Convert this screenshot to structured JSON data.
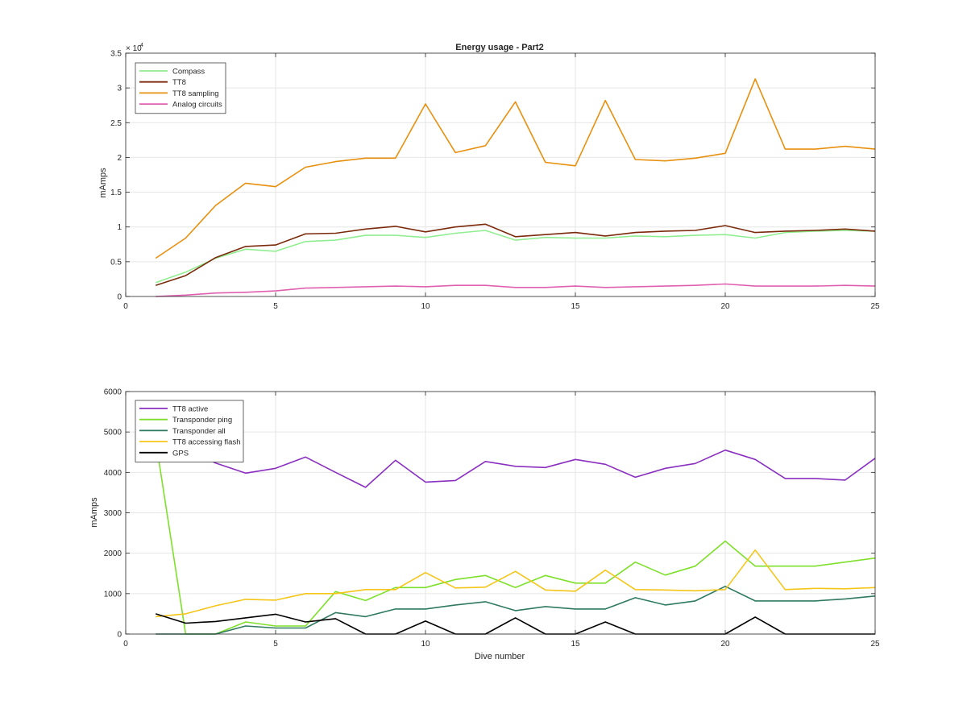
{
  "chart_data": [
    {
      "type": "line",
      "title": "Energy usage - Part2",
      "xlabel": "",
      "ylabel": "mAmps",
      "exponent_label": "× 10",
      "exponent_power": "4",
      "xlim": [
        0,
        25
      ],
      "ylim": [
        0,
        35000
      ],
      "xticks": [
        0,
        5,
        10,
        15,
        20,
        25
      ],
      "yticks": [
        0,
        5000,
        10000,
        15000,
        20000,
        25000,
        30000,
        35000
      ],
      "ytick_labels": [
        "0",
        "0.5",
        "1",
        "1.5",
        "2",
        "2.5",
        "3",
        "3.5"
      ],
      "grid": true,
      "legend_position": "top-left",
      "x": [
        1,
        2,
        3,
        4,
        5,
        6,
        7,
        8,
        9,
        10,
        11,
        12,
        13,
        14,
        15,
        16,
        17,
        18,
        19,
        20,
        21,
        22,
        23,
        24,
        25
      ],
      "series": [
        {
          "name": "Compass",
          "color": "#90ee90",
          "values": [
            2000,
            3500,
            5500,
            6800,
            6500,
            7900,
            8100,
            8800,
            8800,
            8500,
            9100,
            9500,
            8100,
            8500,
            8400,
            8400,
            8700,
            8600,
            8800,
            8900,
            8400,
            9200,
            9400,
            9500,
            9400
          ]
        },
        {
          "name": "TT8",
          "color": "#7b2a0c",
          "values": [
            1600,
            3000,
            5600,
            7200,
            7400,
            9000,
            9100,
            9700,
            10100,
            9300,
            10000,
            10400,
            8600,
            8900,
            9200,
            8700,
            9200,
            9400,
            9500,
            10200,
            9200,
            9400,
            9500,
            9700,
            9400
          ]
        },
        {
          "name": "TT8 sampling",
          "color": "#e8900e",
          "values": [
            5500,
            8400,
            13100,
            16300,
            15800,
            18600,
            19400,
            19900,
            19900,
            27700,
            20700,
            21700,
            28000,
            19300,
            18800,
            28200,
            19700,
            19500,
            19900,
            20600,
            31300,
            21200,
            21200,
            21600,
            21200
          ]
        },
        {
          "name": "Analog circuits",
          "color": "#e060b0",
          "values": [
            0,
            200,
            500,
            600,
            800,
            1200,
            1300,
            1400,
            1500,
            1400,
            1600,
            1600,
            1300,
            1300,
            1500,
            1300,
            1400,
            1500,
            1600,
            1800,
            1500,
            1500,
            1500,
            1600,
            1500
          ]
        }
      ]
    },
    {
      "type": "line",
      "title": "",
      "xlabel": "Dive number",
      "ylabel": "mAmps",
      "xlim": [
        0,
        25
      ],
      "ylim": [
        0,
        6000
      ],
      "xticks": [
        0,
        5,
        10,
        15,
        20,
        25
      ],
      "yticks": [
        0,
        1000,
        2000,
        3000,
        4000,
        5000,
        6000
      ],
      "ytick_labels": [
        "0",
        "1000",
        "2000",
        "3000",
        "4000",
        "5000",
        "6000"
      ],
      "grid": true,
      "legend_position": "top-left",
      "x": [
        1,
        2,
        3,
        4,
        5,
        6,
        7,
        8,
        9,
        10,
        11,
        12,
        13,
        14,
        15,
        16,
        17,
        18,
        19,
        20,
        21,
        22,
        23,
        24,
        25
      ],
      "series": [
        {
          "name": "TT8 active",
          "color": "#8a2fc0",
          "values": [
            4700,
            4600,
            4230,
            3980,
            4100,
            4380,
            4000,
            3630,
            4300,
            3760,
            3800,
            4270,
            4150,
            4120,
            4320,
            4200,
            3880,
            4100,
            4220,
            4550,
            4320,
            3850,
            3850,
            3810,
            4350
          ]
        },
        {
          "name": "Transponder ping",
          "color": "#7ee02a",
          "values": [
            4800,
            0,
            0,
            300,
            200,
            200,
            1050,
            830,
            1150,
            1150,
            1350,
            1450,
            1150,
            1450,
            1260,
            1260,
            1780,
            1460,
            1680,
            2300,
            1680,
            1680,
            1680,
            1780,
            1880
          ]
        },
        {
          "name": "Transponder all",
          "color": "#2f7a60",
          "values": [
            0,
            0,
            0,
            200,
            150,
            150,
            530,
            430,
            620,
            620,
            720,
            800,
            580,
            680,
            620,
            620,
            900,
            720,
            820,
            1180,
            820,
            820,
            820,
            870,
            940
          ]
        },
        {
          "name": "TT8 accessing flash",
          "color": "#f5c518",
          "values": [
            430,
            500,
            700,
            860,
            840,
            1000,
            1000,
            1100,
            1100,
            1520,
            1140,
            1160,
            1550,
            1090,
            1060,
            1580,
            1100,
            1090,
            1070,
            1100,
            2080,
            1100,
            1130,
            1120,
            1150
          ]
        },
        {
          "name": "GPS",
          "color": "#000000",
          "values": [
            500,
            270,
            310,
            400,
            490,
            300,
            380,
            0,
            0,
            320,
            0,
            0,
            400,
            0,
            0,
            300,
            0,
            0,
            0,
            0,
            420,
            0,
            0,
            0,
            0
          ]
        }
      ]
    }
  ]
}
